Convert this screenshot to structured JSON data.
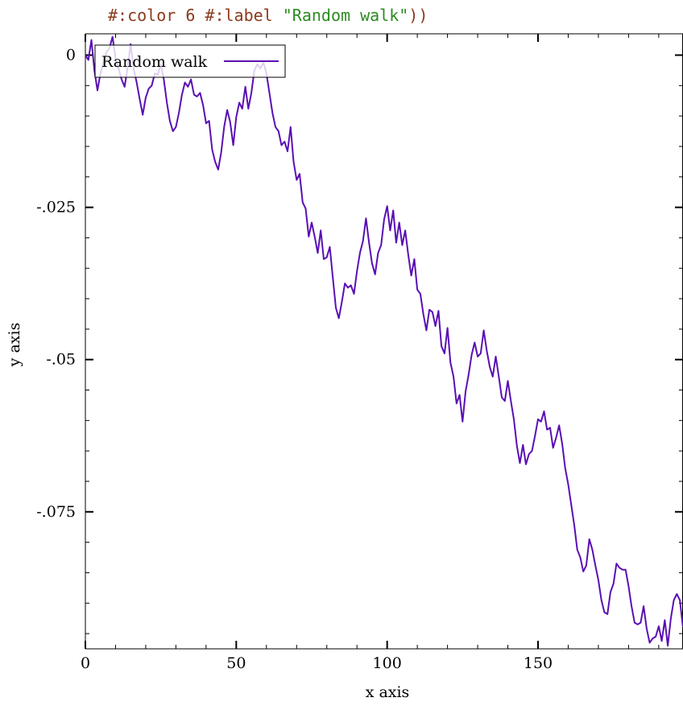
{
  "code": {
    "line_a": "#:color 6 #:label ",
    "line_b": "\"Random walk\"",
    "line_c": "))"
  },
  "chart_data": {
    "type": "line",
    "title": "",
    "xlabel": "x axis",
    "ylabel": "y axis",
    "xlim": [
      0,
      199
    ],
    "ylim": [
      -0.0975,
      0.0035
    ],
    "x_major_ticks": [
      0,
      50,
      100,
      150
    ],
    "x_tick_labels": [
      "0",
      "50",
      "100",
      "150"
    ],
    "y_major_ticks": [
      0,
      -0.025,
      -0.05,
      -0.075
    ],
    "y_tick_labels": [
      "0",
      "-.025",
      "-.05",
      "-.075"
    ],
    "grid": false,
    "legend_position": "top-left",
    "series": [
      {
        "name": "Random walk",
        "color": "#5a0fb4",
        "points": [
          [
            0,
            0.0
          ],
          [
            1,
            -0.0008
          ],
          [
            2,
            0.0025
          ],
          [
            3,
            -0.0025
          ],
          [
            4,
            -0.0058
          ],
          [
            5,
            -0.003
          ],
          [
            6,
            -0.0012
          ],
          [
            7,
            0.0005
          ],
          [
            8,
            0.0012
          ],
          [
            9,
            0.003
          ],
          [
            10,
            -0.0005
          ],
          [
            11,
            -0.0022
          ],
          [
            12,
            -0.004
          ],
          [
            13,
            -0.0052
          ],
          [
            14,
            -0.002
          ],
          [
            15,
            0.0018
          ],
          [
            16,
            -0.0022
          ],
          [
            17,
            -0.0045
          ],
          [
            18,
            -0.0072
          ],
          [
            19,
            -0.0098
          ],
          [
            20,
            -0.007
          ],
          [
            21,
            -0.0055
          ],
          [
            22,
            -0.005
          ],
          [
            23,
            -0.003
          ],
          [
            24,
            -0.0032
          ],
          [
            25,
            -0.0015
          ],
          [
            26,
            -0.004
          ],
          [
            27,
            -0.0078
          ],
          [
            28,
            -0.0108
          ],
          [
            29,
            -0.0125
          ],
          [
            30,
            -0.0118
          ],
          [
            31,
            -0.0095
          ],
          [
            32,
            -0.0065
          ],
          [
            33,
            -0.0045
          ],
          [
            34,
            -0.0052
          ],
          [
            35,
            -0.004
          ],
          [
            36,
            -0.0065
          ],
          [
            37,
            -0.0068
          ],
          [
            38,
            -0.0062
          ],
          [
            39,
            -0.0082
          ],
          [
            40,
            -0.0112
          ],
          [
            41,
            -0.0108
          ],
          [
            42,
            -0.0155
          ],
          [
            43,
            -0.0175
          ],
          [
            44,
            -0.0188
          ],
          [
            45,
            -0.016
          ],
          [
            46,
            -0.0118
          ],
          [
            47,
            -0.009
          ],
          [
            48,
            -0.011
          ],
          [
            49,
            -0.0148
          ],
          [
            50,
            -0.0102
          ],
          [
            51,
            -0.0078
          ],
          [
            52,
            -0.0088
          ],
          [
            53,
            -0.0052
          ],
          [
            54,
            -0.0088
          ],
          [
            55,
            -0.0062
          ],
          [
            56,
            -0.0025
          ],
          [
            57,
            -0.0015
          ],
          [
            58,
            -0.0022
          ],
          [
            59,
            -0.0012
          ],
          [
            60,
            -0.003
          ],
          [
            61,
            -0.0062
          ],
          [
            62,
            -0.0095
          ],
          [
            63,
            -0.0118
          ],
          [
            64,
            -0.0125
          ],
          [
            65,
            -0.0148
          ],
          [
            66,
            -0.0142
          ],
          [
            67,
            -0.0158
          ],
          [
            68,
            -0.0118
          ],
          [
            69,
            -0.0175
          ],
          [
            70,
            -0.0205
          ],
          [
            71,
            -0.0195
          ],
          [
            72,
            -0.0242
          ],
          [
            73,
            -0.0252
          ],
          [
            74,
            -0.0298
          ],
          [
            75,
            -0.0275
          ],
          [
            76,
            -0.0298
          ],
          [
            77,
            -0.0325
          ],
          [
            78,
            -0.0288
          ],
          [
            79,
            -0.0335
          ],
          [
            80,
            -0.0332
          ],
          [
            81,
            -0.0315
          ],
          [
            82,
            -0.0365
          ],
          [
            83,
            -0.0415
          ],
          [
            84,
            -0.0432
          ],
          [
            85,
            -0.0405
          ],
          [
            86,
            -0.0375
          ],
          [
            87,
            -0.0382
          ],
          [
            88,
            -0.0378
          ],
          [
            89,
            -0.0392
          ],
          [
            90,
            -0.0355
          ],
          [
            91,
            -0.0325
          ],
          [
            92,
            -0.0305
          ],
          [
            93,
            -0.0268
          ],
          [
            94,
            -0.0308
          ],
          [
            95,
            -0.0342
          ],
          [
            96,
            -0.036
          ],
          [
            97,
            -0.0325
          ],
          [
            98,
            -0.0312
          ],
          [
            99,
            -0.027
          ],
          [
            100,
            -0.0248
          ],
          [
            101,
            -0.0288
          ],
          [
            102,
            -0.0255
          ],
          [
            103,
            -0.0308
          ],
          [
            104,
            -0.0275
          ],
          [
            105,
            -0.0312
          ],
          [
            106,
            -0.0288
          ],
          [
            107,
            -0.0328
          ],
          [
            108,
            -0.0362
          ],
          [
            109,
            -0.0335
          ],
          [
            110,
            -0.0385
          ],
          [
            111,
            -0.0392
          ],
          [
            112,
            -0.0425
          ],
          [
            113,
            -0.0452
          ],
          [
            114,
            -0.0418
          ],
          [
            115,
            -0.0422
          ],
          [
            116,
            -0.0445
          ],
          [
            117,
            -0.042
          ],
          [
            118,
            -0.0478
          ],
          [
            119,
            -0.049
          ],
          [
            120,
            -0.0448
          ],
          [
            121,
            -0.0505
          ],
          [
            122,
            -0.0528
          ],
          [
            123,
            -0.0572
          ],
          [
            124,
            -0.0558
          ],
          [
            125,
            -0.0602
          ],
          [
            126,
            -0.0552
          ],
          [
            127,
            -0.0525
          ],
          [
            128,
            -0.0492
          ],
          [
            129,
            -0.0472
          ],
          [
            130,
            -0.0495
          ],
          [
            131,
            -0.049
          ],
          [
            132,
            -0.0452
          ],
          [
            133,
            -0.0485
          ],
          [
            134,
            -0.0512
          ],
          [
            135,
            -0.0528
          ],
          [
            136,
            -0.0495
          ],
          [
            137,
            -0.0528
          ],
          [
            138,
            -0.0562
          ],
          [
            139,
            -0.0568
          ],
          [
            140,
            -0.0535
          ],
          [
            141,
            -0.0568
          ],
          [
            142,
            -0.0598
          ],
          [
            143,
            -0.0642
          ],
          [
            144,
            -0.067
          ],
          [
            145,
            -0.064
          ],
          [
            146,
            -0.0672
          ],
          [
            147,
            -0.0655
          ],
          [
            148,
            -0.065
          ],
          [
            149,
            -0.0625
          ],
          [
            150,
            -0.0598
          ],
          [
            151,
            -0.0602
          ],
          [
            152,
            -0.0585
          ],
          [
            153,
            -0.0615
          ],
          [
            154,
            -0.0612
          ],
          [
            155,
            -0.0645
          ],
          [
            156,
            -0.0628
          ],
          [
            157,
            -0.0608
          ],
          [
            158,
            -0.0638
          ],
          [
            159,
            -0.0678
          ],
          [
            160,
            -0.0705
          ],
          [
            161,
            -0.0738
          ],
          [
            162,
            -0.0772
          ],
          [
            163,
            -0.0812
          ],
          [
            164,
            -0.0825
          ],
          [
            165,
            -0.0848
          ],
          [
            166,
            -0.0838
          ],
          [
            167,
            -0.0795
          ],
          [
            168,
            -0.0812
          ],
          [
            169,
            -0.0838
          ],
          [
            170,
            -0.0862
          ],
          [
            171,
            -0.0895
          ],
          [
            172,
            -0.0915
          ],
          [
            173,
            -0.0918
          ],
          [
            174,
            -0.0882
          ],
          [
            175,
            -0.0868
          ],
          [
            176,
            -0.0835
          ],
          [
            177,
            -0.0842
          ],
          [
            178,
            -0.0845
          ],
          [
            179,
            -0.0845
          ],
          [
            180,
            -0.0872
          ],
          [
            181,
            -0.0905
          ],
          [
            182,
            -0.0932
          ],
          [
            183,
            -0.0935
          ],
          [
            184,
            -0.0932
          ],
          [
            185,
            -0.0905
          ],
          [
            186,
            -0.0942
          ],
          [
            187,
            -0.0965
          ],
          [
            188,
            -0.0958
          ],
          [
            189,
            -0.0955
          ],
          [
            190,
            -0.0938
          ],
          [
            191,
            -0.0962
          ],
          [
            192,
            -0.0928
          ],
          [
            193,
            -0.097
          ],
          [
            194,
            -0.0925
          ],
          [
            195,
            -0.0895
          ],
          [
            196,
            -0.0885
          ],
          [
            197,
            -0.0895
          ],
          [
            198,
            -0.0938
          ],
          [
            199,
            -0.0895
          ],
          [
            200,
            -0.0902
          ]
        ]
      }
    ]
  }
}
